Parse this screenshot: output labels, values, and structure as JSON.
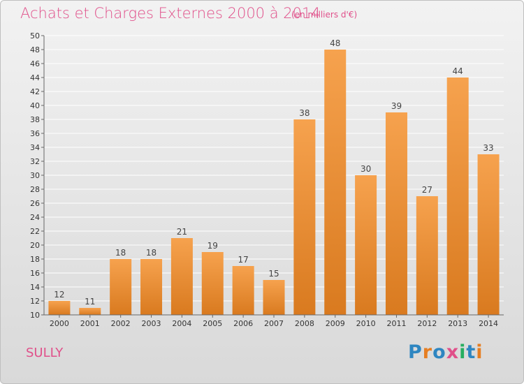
{
  "header": {
    "title": "Achats et Charges Externes 2000 à 2014",
    "subtitle": "(en milliers d'€)"
  },
  "footer": {
    "commune": "SULLY",
    "logo": {
      "text": "Proxiti",
      "letters": [
        {
          "ch": "P",
          "color": "#2e86c1"
        },
        {
          "ch": "r",
          "color": "#e67e22"
        },
        {
          "ch": "o",
          "color": "#2e86c1"
        },
        {
          "ch": "x",
          "color": "#e0508a"
        },
        {
          "ch": "i",
          "color": "#27ae60"
        },
        {
          "ch": "t",
          "color": "#2e86c1"
        },
        {
          "ch": "i",
          "color": "#e67e22"
        }
      ]
    }
  },
  "colors": {
    "bar_light": "#f6a24e",
    "bar_dark": "#d97a1f",
    "axis": "#666666",
    "grid": "#ffffff",
    "text_accent": "#e0508a"
  },
  "chart_data": {
    "type": "bar",
    "title": "Achats et Charges Externes 2000 à 2014",
    "subtitle": "(en milliers d'€)",
    "xlabel": "",
    "ylabel": "",
    "categories": [
      "2000",
      "2001",
      "2002",
      "2003",
      "2004",
      "2005",
      "2006",
      "2007",
      "2008",
      "2009",
      "2010",
      "2011",
      "2012",
      "2013",
      "2014"
    ],
    "values": [
      12,
      11,
      18,
      18,
      21,
      19,
      17,
      15,
      38,
      48,
      30,
      39,
      27,
      44,
      33
    ],
    "ylim": [
      10,
      50
    ],
    "yticks": [
      10,
      12,
      14,
      16,
      18,
      20,
      22,
      24,
      26,
      28,
      30,
      32,
      34,
      36,
      38,
      40,
      42,
      44,
      46,
      48,
      50
    ],
    "grid": true,
    "legend": "none"
  }
}
